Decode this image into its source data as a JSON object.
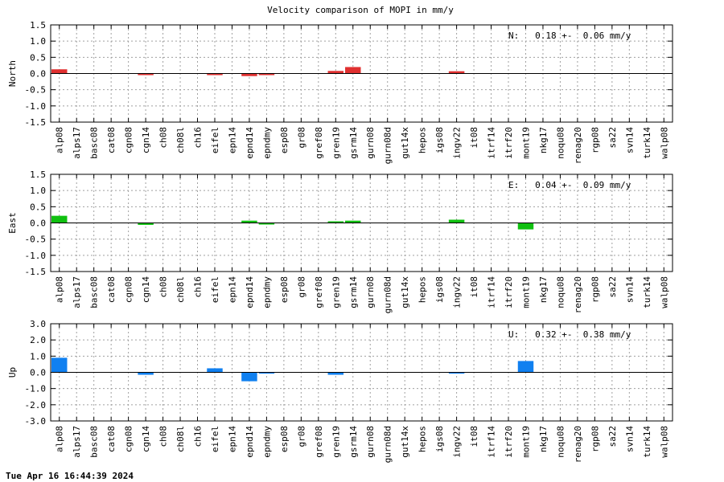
{
  "title": "Velocity comparison of MOPI in mm/y",
  "footer": "Tue Apr 16 16:44:39 2024",
  "chart_data": [
    {
      "type": "bar",
      "ylabel": "North",
      "ylim": [
        -1.5,
        1.5
      ],
      "yticks": [
        -1.5,
        -1.0,
        -0.5,
        0.0,
        0.5,
        1.0,
        1.5
      ],
      "color": "#e03030",
      "stat": "N:   0.18 +-  0.06 mm/y",
      "grid": true,
      "categories": [
        "alp08",
        "alps17",
        "basc08",
        "cat08",
        "cgn08",
        "cgn14",
        "ch08",
        "ch08l",
        "ch16",
        "eifel",
        "epn14",
        "epnd14",
        "epndmy",
        "esp08",
        "gr08",
        "gref08",
        "gren19",
        "gsrm14",
        "gurn08",
        "gurn08d",
        "gut14x",
        "hepos",
        "igs08",
        "ingv22",
        "it08",
        "itrf14",
        "itrf20",
        "mont19",
        "nkg17",
        "noqu08",
        "renag20",
        "rgp08",
        "sa22",
        "svn14",
        "turk14",
        "walp08"
      ],
      "values": [
        0.13,
        0,
        0,
        0,
        0,
        -0.05,
        0,
        0,
        0,
        -0.05,
        0,
        -0.08,
        -0.05,
        0,
        0,
        0,
        0.08,
        0.2,
        0,
        0,
        0,
        0,
        0,
        0.07,
        0,
        0,
        0,
        0,
        0,
        0,
        0,
        0,
        0,
        0,
        0,
        0
      ]
    },
    {
      "type": "bar",
      "ylabel": "East",
      "ylim": [
        -1.5,
        1.5
      ],
      "yticks": [
        -1.5,
        -1.0,
        -0.5,
        0.0,
        0.5,
        1.0,
        1.5
      ],
      "color": "#10c010",
      "stat": "E:   0.04 +-  0.09 mm/y",
      "grid": true,
      "categories": [
        "alp08",
        "alps17",
        "basc08",
        "cat08",
        "cgn08",
        "cgn14",
        "ch08",
        "ch08l",
        "ch16",
        "eifel",
        "epn14",
        "epnd14",
        "epndmy",
        "esp08",
        "gr08",
        "gref08",
        "gren19",
        "gsrm14",
        "gurn08",
        "gurn08d",
        "gut14x",
        "hepos",
        "igs08",
        "ingv22",
        "it08",
        "itrf14",
        "itrf20",
        "mont19",
        "nkg17",
        "noqu08",
        "renag20",
        "rgp08",
        "sa22",
        "svn14",
        "turk14",
        "walp08"
      ],
      "values": [
        0.22,
        0,
        0,
        0,
        0,
        -0.06,
        0,
        0,
        0,
        0,
        0,
        0.07,
        -0.05,
        0,
        0,
        0,
        0.05,
        0.07,
        0,
        0,
        0,
        0,
        0,
        0.1,
        0,
        0,
        0,
        -0.2,
        0,
        0,
        0,
        0,
        0,
        0,
        0,
        0
      ]
    },
    {
      "type": "bar",
      "ylabel": "Up",
      "ylim": [
        -3.0,
        3.0
      ],
      "yticks": [
        -3.0,
        -2.0,
        -1.0,
        0.0,
        1.0,
        2.0,
        3.0
      ],
      "color": "#1080f0",
      "stat": "U:   0.32 +-  0.38 mm/y",
      "grid": true,
      "categories": [
        "alp08",
        "alps17",
        "basc08",
        "cat08",
        "cgn08",
        "cgn14",
        "ch08",
        "ch08l",
        "ch16",
        "eifel",
        "epn14",
        "epnd14",
        "epndmy",
        "esp08",
        "gr08",
        "gref08",
        "gren19",
        "gsrm14",
        "gurn08",
        "gurn08d",
        "gut14x",
        "hepos",
        "igs08",
        "ingv22",
        "it08",
        "itrf14",
        "itrf20",
        "mont19",
        "nkg17",
        "noqu08",
        "renag20",
        "rgp08",
        "sa22",
        "svn14",
        "turk14",
        "walp08"
      ],
      "values": [
        0.9,
        0,
        0,
        0,
        0,
        -0.15,
        0,
        0,
        0,
        0.25,
        0,
        -0.55,
        -0.08,
        0,
        0,
        0,
        -0.15,
        0,
        0,
        0,
        0,
        0,
        0,
        -0.08,
        0,
        0,
        0,
        0.7,
        0,
        0,
        0,
        0,
        0,
        0,
        0,
        0
      ]
    }
  ]
}
